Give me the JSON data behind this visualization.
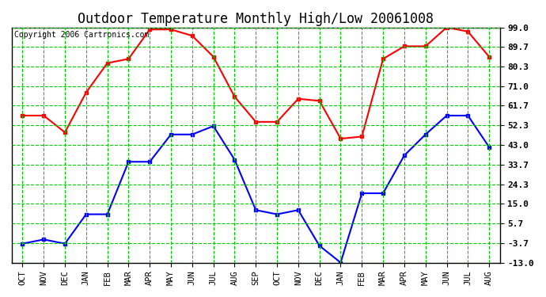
{
  "title": "Outdoor Temperature Monthly High/Low 20061008",
  "copyright": "Copyright 2006 Cartronics.com",
  "x_labels": [
    "OCT",
    "NOV",
    "DEC",
    "JAN",
    "FEB",
    "MAR",
    "APR",
    "MAY",
    "JUN",
    "JUL",
    "AUG",
    "SEP",
    "OCT",
    "NOV",
    "DEC",
    "JAN",
    "FEB",
    "MAR",
    "APR",
    "MAY",
    "JUN",
    "JUL",
    "AUG"
  ],
  "high_values": [
    57,
    57,
    49,
    68,
    82,
    84,
    98,
    98,
    95,
    85,
    66,
    54,
    54,
    65,
    64,
    46,
    47,
    84,
    90,
    90,
    99,
    97,
    85
  ],
  "low_values": [
    -4,
    -2,
    -4,
    10,
    10,
    35,
    35,
    48,
    48,
    52,
    36,
    12,
    10,
    12,
    -5,
    -13,
    20,
    20,
    38,
    48,
    57,
    57,
    42
  ],
  "y_ticks": [
    99.0,
    89.7,
    80.3,
    71.0,
    61.7,
    52.3,
    43.0,
    33.7,
    24.3,
    15.0,
    5.7,
    -3.7,
    -13.0
  ],
  "ylim": [
    -13.0,
    99.0
  ],
  "high_color": "red",
  "low_color": "blue",
  "grid_color": "#00cc00",
  "bg_color": "white",
  "title_fontsize": 12,
  "copyright_fontsize": 7
}
